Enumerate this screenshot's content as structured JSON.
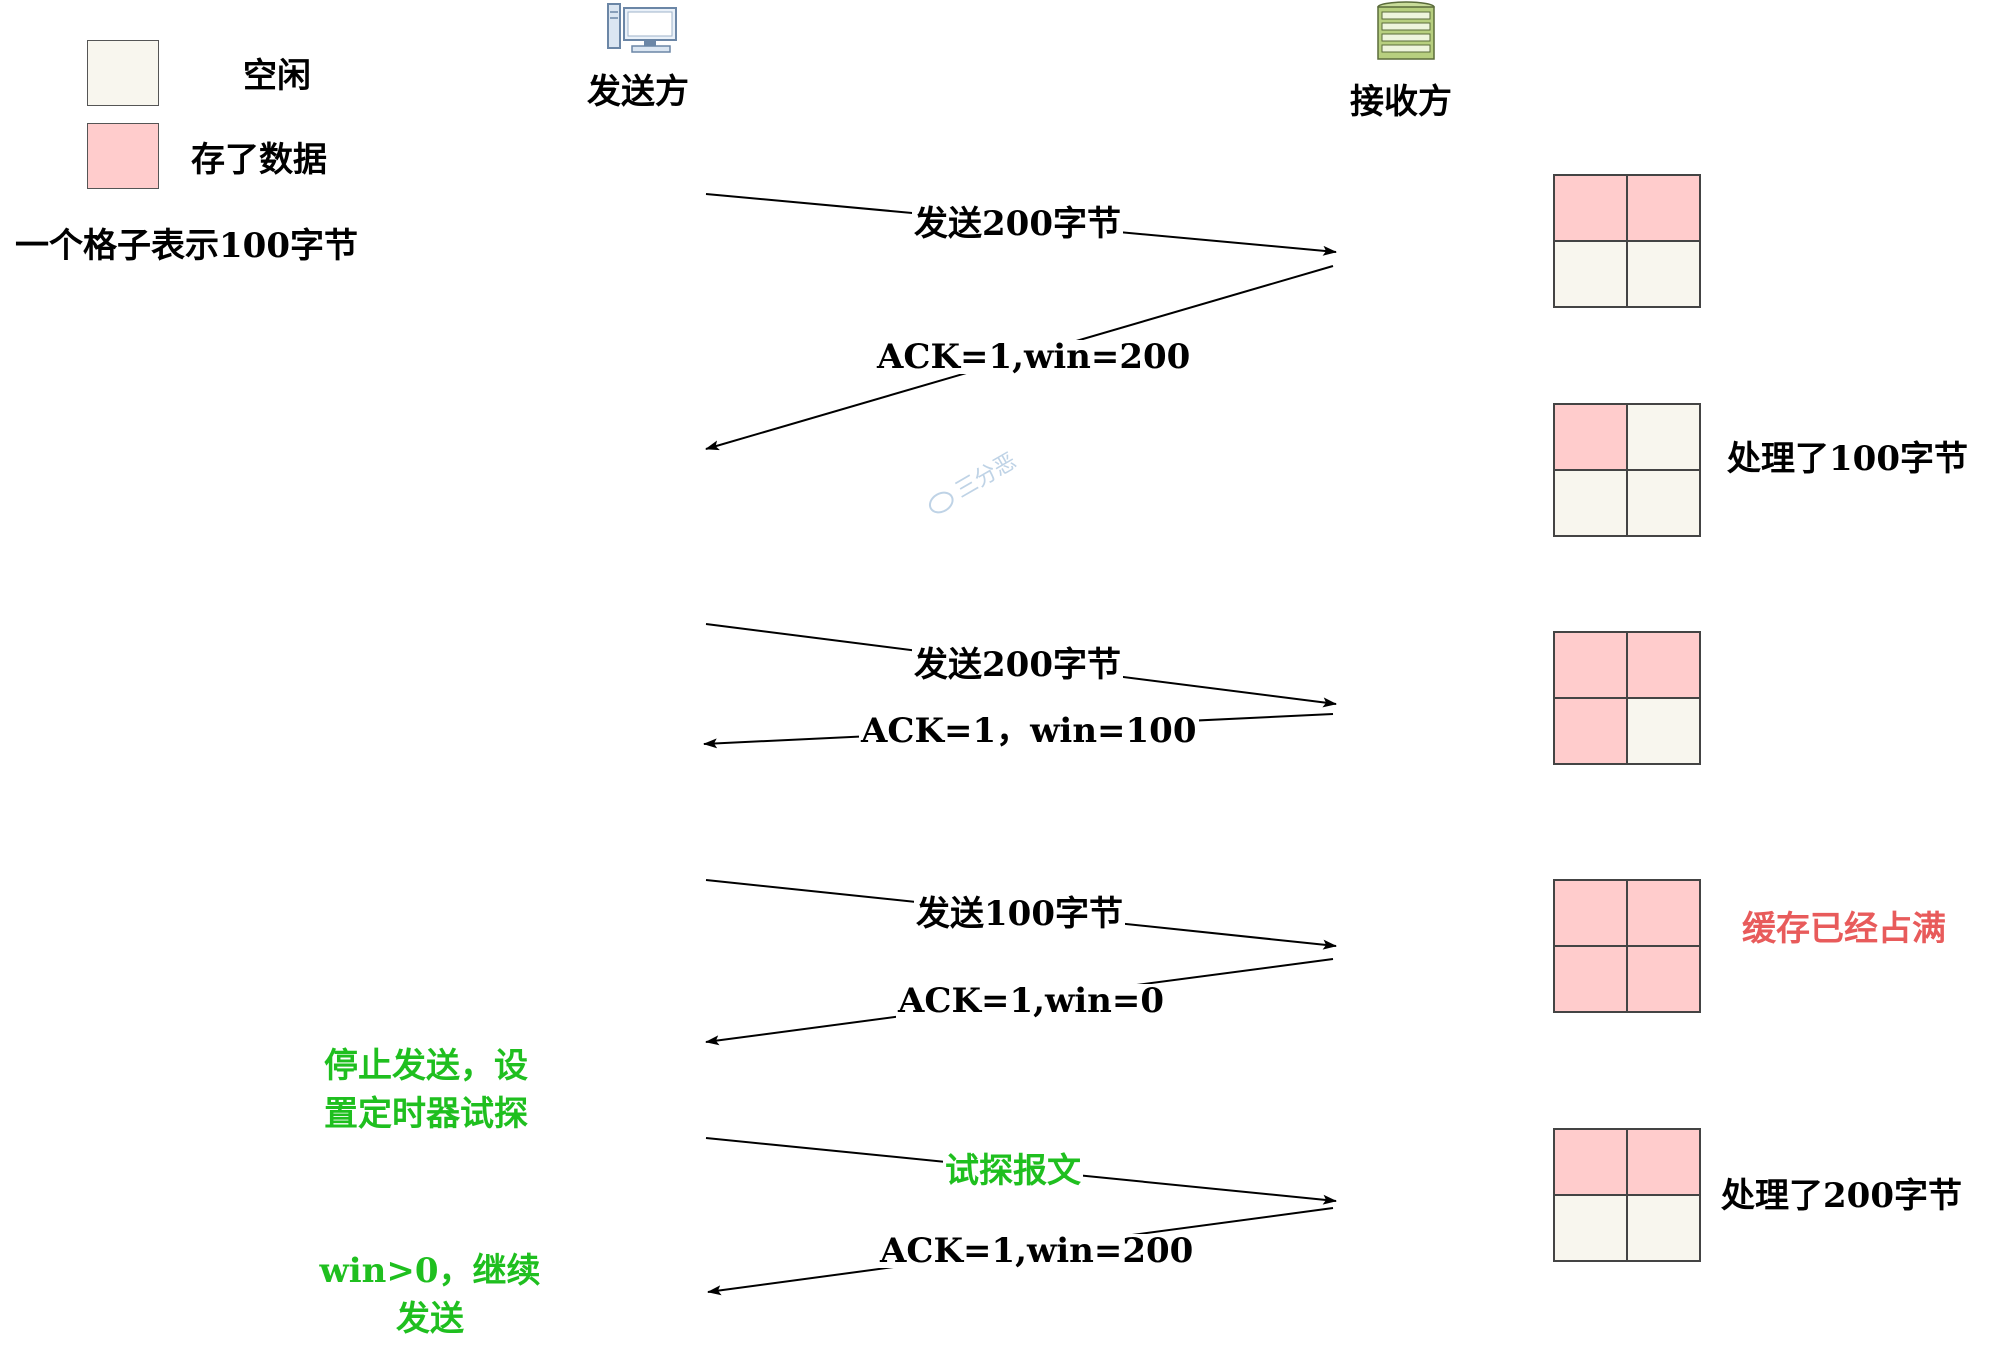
{
  "colors": {
    "free": "#f8f6ee",
    "filled": "#ffcccc",
    "green": "#1fbf1f",
    "red": "#e85b5b"
  },
  "legend": {
    "free_label": "空闲",
    "filled_label": "存了数据",
    "note": "一个格子表示100字节"
  },
  "participants": {
    "sender": {
      "label": "发送方",
      "icon": "computer-icon"
    },
    "receiver": {
      "label": "接收方",
      "icon": "server-icon"
    }
  },
  "messages": [
    {
      "label": "发送200字节",
      "direction": "to-receiver"
    },
    {
      "label": "ACK=1,win=200",
      "direction": "to-sender"
    },
    {
      "label": "发送200字节",
      "direction": "to-receiver"
    },
    {
      "label": "ACK=1，win=100",
      "direction": "to-sender"
    },
    {
      "label": "发送100字节",
      "direction": "to-receiver"
    },
    {
      "label": "ACK=1,win=0",
      "direction": "to-sender"
    },
    {
      "label": "试探报文",
      "direction": "to-receiver",
      "color": "green"
    },
    {
      "label": "ACK=1,win=200",
      "direction": "to-sender"
    }
  ],
  "buffers": [
    {
      "cells": [
        "filled",
        "filled",
        "free",
        "free"
      ],
      "note": ""
    },
    {
      "cells": [
        "filled",
        "free",
        "free",
        "free"
      ],
      "note": "处理了100字节"
    },
    {
      "cells": [
        "filled",
        "filled",
        "filled",
        "free"
      ],
      "note": ""
    },
    {
      "cells": [
        "filled",
        "filled",
        "filled",
        "filled"
      ],
      "note": "缓存已经占满",
      "note_color": "red"
    },
    {
      "cells": [
        "filled",
        "filled",
        "free",
        "free"
      ],
      "note": "处理了200字节"
    }
  ],
  "sender_notes": {
    "stop": [
      "停止发送，设",
      "置定时器试探"
    ],
    "resume": [
      "win>0，继续",
      "发送"
    ]
  },
  "watermark": "三分恶"
}
